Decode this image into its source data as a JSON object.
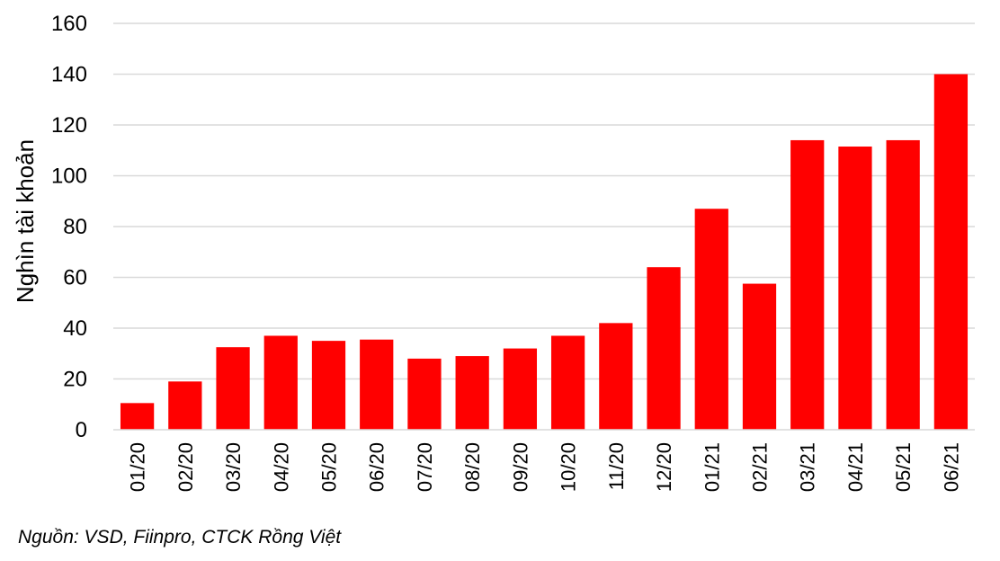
{
  "chart_data": {
    "type": "bar",
    "categories": [
      "01/20",
      "02/20",
      "03/20",
      "04/20",
      "05/20",
      "06/20",
      "07/20",
      "08/20",
      "09/20",
      "10/20",
      "11/20",
      "12/20",
      "01/21",
      "02/21",
      "03/21",
      "04/21",
      "05/21",
      "06/21"
    ],
    "values": [
      10.5,
      19,
      32.5,
      37,
      35,
      35.5,
      28,
      29,
      32,
      37,
      42,
      64,
      87,
      57.5,
      114,
      111.5,
      114,
      140
    ],
    "title": "",
    "xlabel": "",
    "ylabel": "Nghìn tài khoản",
    "ylim": [
      0,
      160
    ],
    "yticks": [
      0,
      20,
      40,
      60,
      80,
      100,
      120,
      140,
      160
    ],
    "grid": true,
    "bar_color": "#ff0000",
    "grid_color": "#d9d9d9"
  },
  "source": "Nguồn: VSD, Fiinpro, CTCK Rồng Việt"
}
